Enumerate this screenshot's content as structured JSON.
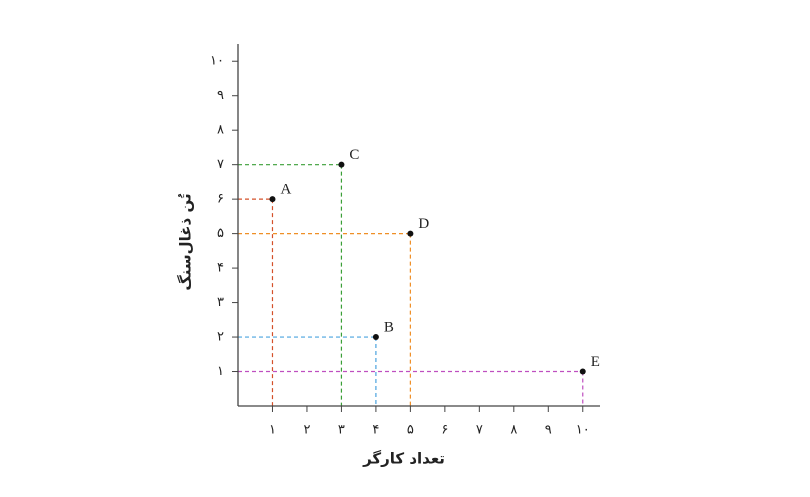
{
  "chart_data": {
    "type": "scatter",
    "x_label": "تعداد کارگر",
    "y_label": "تُن ذغال‌سنگ",
    "xlim": [
      0,
      10.5
    ],
    "ylim": [
      0,
      10.5
    ],
    "xticks": [
      {
        "value": 1,
        "label": "۱"
      },
      {
        "value": 2,
        "label": "۲"
      },
      {
        "value": 3,
        "label": "۳"
      },
      {
        "value": 4,
        "label": "۴"
      },
      {
        "value": 5,
        "label": "۵"
      },
      {
        "value": 6,
        "label": "۶"
      },
      {
        "value": 7,
        "label": "۷"
      },
      {
        "value": 8,
        "label": "۸"
      },
      {
        "value": 9,
        "label": "۹"
      },
      {
        "value": 10,
        "label": "۱۰"
      }
    ],
    "yticks": [
      {
        "value": 1,
        "label": "۱"
      },
      {
        "value": 2,
        "label": "۲"
      },
      {
        "value": 3,
        "label": "۳"
      },
      {
        "value": 4,
        "label": "۴"
      },
      {
        "value": 5,
        "label": "۵"
      },
      {
        "value": 6,
        "label": "۶"
      },
      {
        "value": 7,
        "label": "۷"
      },
      {
        "value": 8,
        "label": "۸"
      },
      {
        "value": 9,
        "label": "۹"
      },
      {
        "value": 10,
        "label": "۱۰"
      }
    ],
    "points": [
      {
        "label": "A",
        "x": 1,
        "y": 6,
        "color": "#d4502a"
      },
      {
        "label": "B",
        "x": 4,
        "y": 2,
        "color": "#4aa3df"
      },
      {
        "label": "C",
        "x": 3,
        "y": 7,
        "color": "#3a9f37"
      },
      {
        "label": "D",
        "x": 5,
        "y": 5,
        "color": "#ef8f26"
      },
      {
        "label": "E",
        "x": 10,
        "y": 1,
        "color": "#bf4fc0"
      }
    ]
  }
}
